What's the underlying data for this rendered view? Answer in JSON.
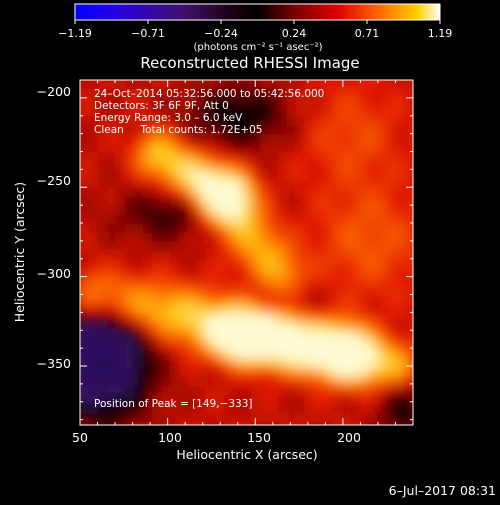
{
  "colorbar": {
    "ticks": [
      "−1.19",
      "−0.71",
      "−0.24",
      "0.24",
      "0.71",
      "1.19"
    ],
    "units": "(photons cm⁻² s⁻¹ asec⁻²)"
  },
  "chart_data": {
    "type": "heatmap",
    "title": "Reconstructed RHESSI Image",
    "xlabel": "Heliocentric X (arcsec)",
    "ylabel": "Heliocentric Y (arcsec)",
    "xlim": [
      50,
      240
    ],
    "ylim": [
      -383,
      -190
    ],
    "xticks": [
      "50",
      "100",
      "150",
      "200"
    ],
    "yticks": [
      "−200",
      "−250",
      "−300",
      "−350"
    ],
    "color_range": [
      -1.19,
      1.19
    ],
    "colormap": "black-blue-purple-red-orange-yellow-white",
    "annotations": [
      "24–Oct–2014 05:32:56.000 to 05:42:56.000",
      "Detectors: 3F 6F 9F, Att 0",
      "Energy Range: 3.0 – 6.0 keV",
      "Clean     Total counts: 1.72E+05"
    ],
    "peak_label": "Position of Peak = [149,−333]",
    "peak": [
      149,
      -333
    ]
  },
  "footer": {
    "date": "6–Jul–2017 08:31"
  }
}
